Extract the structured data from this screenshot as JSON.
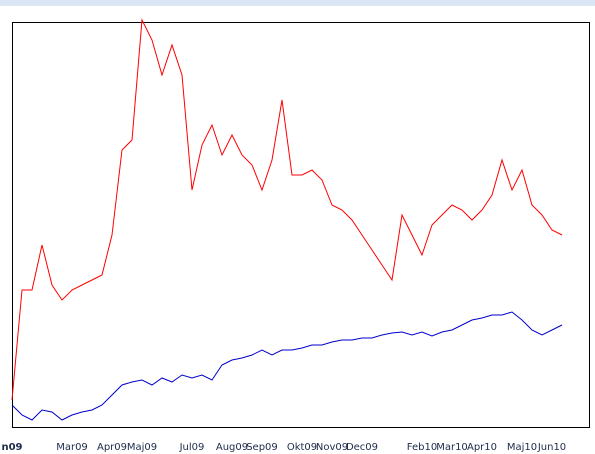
{
  "chart_data": {
    "type": "line",
    "categories": [
      "n09",
      null,
      null,
      null,
      null,
      null,
      "Mar09",
      null,
      null,
      null,
      "Apr09",
      null,
      null,
      "Maj09",
      null,
      null,
      null,
      null,
      "Jul09",
      null,
      null,
      null,
      "Aug09",
      null,
      null,
      "Sep09",
      null,
      null,
      null,
      "Okt09",
      null,
      null,
      "Nov09",
      null,
      null,
      "Dec09",
      null,
      null,
      null,
      null,
      null,
      "Feb10",
      null,
      null,
      "Mar10",
      null,
      null,
      "Apr10",
      null,
      null,
      null,
      "Maj10",
      null,
      null,
      "Jun10",
      null
    ],
    "series": [
      {
        "color": "#ff0000",
        "values": [
          28,
          138,
          138,
          183,
          143,
          128,
          138,
          143,
          148,
          153,
          193,
          278,
          288,
          408,
          388,
          353,
          383,
          353,
          238,
          283,
          303,
          273,
          293,
          273,
          263,
          238,
          268,
          328,
          253,
          253,
          258,
          248,
          223,
          218,
          208,
          193,
          178,
          163,
          148,
          213,
          193,
          173,
          203,
          213,
          223,
          218,
          208,
          218,
          233,
          268,
          238,
          258,
          223,
          213,
          198,
          193
        ]
      },
      {
        "color": "#0000cc",
        "values": [
          23,
          13,
          8,
          18,
          16,
          8,
          13,
          16,
          18,
          23,
          33,
          43,
          46,
          48,
          43,
          50,
          46,
          53,
          50,
          53,
          48,
          63,
          68,
          70,
          73,
          78,
          73,
          78,
          78,
          80,
          83,
          83,
          86,
          88,
          88,
          90,
          90,
          93,
          95,
          96,
          93,
          96,
          92,
          96,
          98,
          103,
          108,
          110,
          113,
          113,
          116,
          108,
          98,
          93,
          98,
          103
        ]
      }
    ],
    "ylim": [
      0,
      406
    ]
  }
}
